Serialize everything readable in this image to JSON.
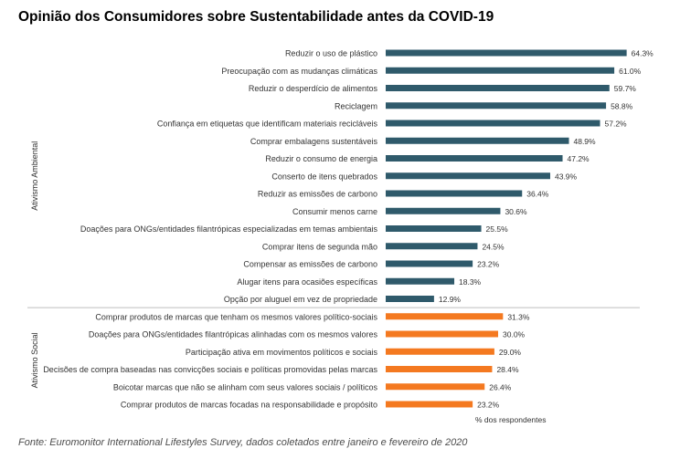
{
  "title": "Opinião dos Consumidores sobre Sustentabilidade antes da COVID-19",
  "source": "Fonte: Euromonitor International Lifestyles Survey, dados coletados entre janeiro e fevereiro de 2020",
  "colors": {
    "ambiental": "#2f5a6b",
    "social": "#f47920",
    "text": "#333333",
    "divider": "#bfbfbf"
  },
  "chart_data": {
    "type": "bar",
    "orientation": "horizontal",
    "title": "Opinião dos Consumidores sobre Sustentabilidade antes da COVID-19",
    "xlabel": "% dos respondentes",
    "xlim": [
      0,
      70
    ],
    "grid": false,
    "value_suffix": "%",
    "groups": [
      {
        "name": "Ativismo Ambiental",
        "color": "#2f5a6b",
        "categories": [
          "Reduzir o uso de plástico",
          "Preocupação com as mudanças climáticas",
          "Reduzir o desperdício de alimentos",
          "Reciclagem",
          "Confiança em etiquetas que identificam materiais recicláveis",
          "Comprar embalagens sustentáveis",
          "Reduzir o consumo de energia",
          "Conserto de itens quebrados",
          "Reduzir as emissões de carbono",
          "Consumir menos carne",
          "Doações para ONGs/entidades filantrópicas especializadas em temas ambientais",
          "Comprar itens de segunda mão",
          "Compensar as emissões de carbono",
          "Alugar itens para ocasiões específicas",
          "Opção por aluguel em vez de propriedade"
        ],
        "values": [
          64.3,
          61.0,
          59.7,
          58.8,
          57.2,
          48.9,
          47.2,
          43.9,
          36.4,
          30.6,
          25.5,
          24.5,
          23.2,
          18.3,
          12.9
        ]
      },
      {
        "name": "Ativismo Social",
        "color": "#f47920",
        "categories": [
          "Comprar produtos de marcas que tenham os mesmos valores político-sociais",
          "Doações para ONGs/entidades filantrópicas alinhadas com os mesmos valores",
          "Participação ativa em movimentos políticos e sociais",
          "Decisões de compra baseadas nas convicções sociais e políticas promovidas pelas marcas",
          "Boicotar marcas que não se alinham com seus valores sociais / políticos",
          "Comprar produtos de marcas focadas na responsabilidade e propósito"
        ],
        "values": [
          31.3,
          30.0,
          29.0,
          28.4,
          26.4,
          23.2
        ]
      }
    ]
  }
}
